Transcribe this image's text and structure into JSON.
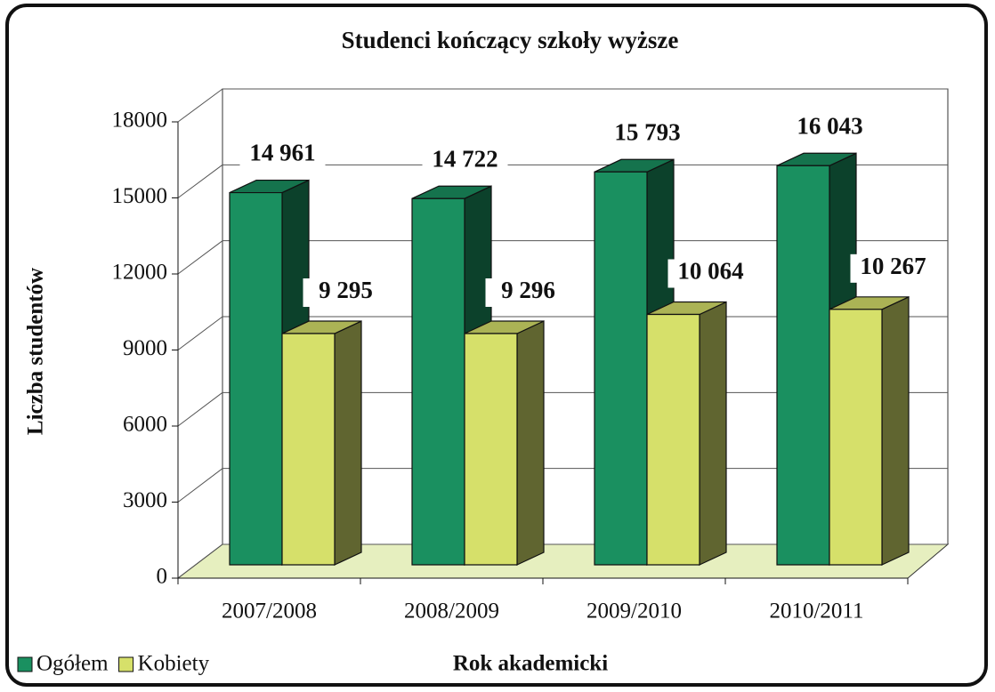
{
  "chart_data": {
    "type": "bar3d",
    "title": "Studenci kończący szkoły wyższe",
    "y_label": "Liczba studentów",
    "x_label": "Rok akademicki",
    "categories": [
      "2007/2008",
      "2008/2009",
      "2009/2010",
      "2010/2011"
    ],
    "series": [
      {
        "name": "Ogółem",
        "color": "#1a9060",
        "values": [
          14961,
          14722,
          15793,
          16043
        ],
        "value_labels": [
          "14 961",
          "14 722",
          "15 793",
          "16 043"
        ]
      },
      {
        "name": "Kobiety",
        "color": "#d6e06a",
        "values": [
          9295,
          9296,
          10064,
          10267
        ],
        "value_labels": [
          "9 295",
          "9 296",
          "10 064",
          "10 267"
        ]
      }
    ],
    "ylim": [
      0,
      18000
    ],
    "yticks": [
      0,
      3000,
      6000,
      9000,
      12000,
      15000,
      18000
    ],
    "grid": true,
    "legend": "bottom-left"
  }
}
